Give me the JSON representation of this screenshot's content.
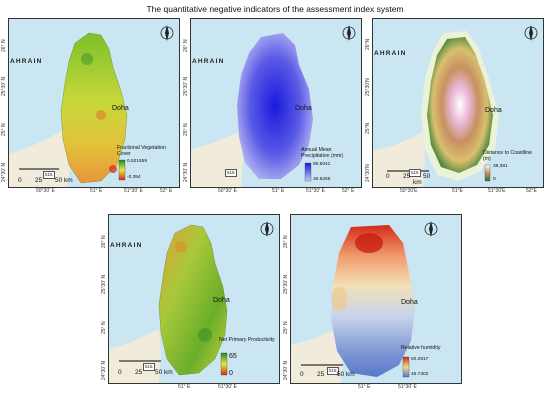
{
  "title": "The quantitative negative indicators of the assessment index system",
  "place_labels": {
    "ahrain": "AHRAIN",
    "doha": "Doha",
    "road": "515"
  },
  "panels": [
    {
      "id": "fractional-vegetation-cover",
      "legend_title": "Fractional Vegetation Cover",
      "legend_max": "0.521559",
      "legend_min": "-0.354",
      "legend_colors": [
        "#1a8a2a",
        "#e8e83a",
        "#d62a1e"
      ],
      "scale": {
        "ticks": [
          "0",
          "25",
          "50 km"
        ]
      },
      "x_ticks": [
        "50°30' E",
        "51° E",
        "51°30' E",
        "52° E"
      ],
      "y_ticks": [
        "26° N",
        "25°30' N",
        "25° N",
        "24°30' N"
      ]
    },
    {
      "id": "annual-mean-precipitation",
      "legend_title": "Annual Mean Precipitation (mm)",
      "legend_max": "90.5041",
      "legend_min": "36.5255",
      "legend_colors": [
        "#1a1adc",
        "#c8c8f4"
      ],
      "scale": {
        "ticks": [
          "0",
          "25",
          "50 km"
        ]
      },
      "x_ticks": [
        "50°30' E",
        "51° E",
        "51°30' E",
        "52° E"
      ],
      "y_ticks": [
        "26° N",
        "25°30' N",
        "25° N",
        "24°30' N"
      ]
    },
    {
      "id": "distance-to-coastline",
      "legend_title": "Distance to Coastline (m)",
      "legend_max": "39,381",
      "legend_min": "0",
      "legend_colors": [
        "#ffffff",
        "#c89060",
        "#2a7a2a"
      ],
      "scale": {
        "ticks": [
          "0",
          "25",
          "50",
          "km"
        ]
      },
      "x_ticks": [
        "50°30'E",
        "51°E",
        "51°30'E",
        "52°E"
      ],
      "y_ticks": [
        "26°N",
        "25°30'N",
        "25°N",
        "24°30'N"
      ]
    },
    {
      "id": "net-primary-productivity",
      "legend_title": "Net Primary Productivity",
      "legend_max": "65",
      "legend_min": "0",
      "legend_colors": [
        "#1a8a2a",
        "#e8e83a",
        "#d62a1e"
      ],
      "scale": {
        "ticks": [
          "0",
          "25",
          "50 km"
        ]
      },
      "x_ticks": [
        "51° E",
        "51°30' E"
      ],
      "y_ticks": [
        "26° N",
        "25°30' N",
        "25° N",
        "24°30' N"
      ]
    },
    {
      "id": "relative-humidity",
      "legend_title": "Relative humidity",
      "legend_max": "60.2917",
      "legend_min": "45.7302",
      "legend_colors": [
        "#d42a1a",
        "#f0d888",
        "#5a78c8"
      ],
      "scale": {
        "ticks": [
          "0",
          "25",
          "50 km"
        ]
      },
      "x_ticks": [
        "51° E",
        "51°30' E"
      ],
      "y_ticks": [
        "26° N",
        "25°30' N",
        "25° N",
        "24°30' N"
      ]
    }
  ]
}
